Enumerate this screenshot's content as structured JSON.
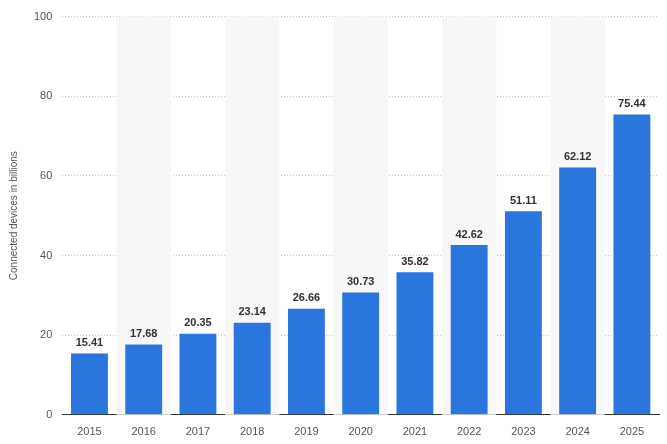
{
  "chart_data": {
    "type": "bar",
    "y_label": "Connected devices in billions",
    "categories": [
      "2015",
      "2016",
      "2017",
      "2018",
      "2019",
      "2020",
      "2021",
      "2022",
      "2023",
      "2024",
      "2025"
    ],
    "values": [
      15.41,
      17.68,
      20.35,
      23.14,
      26.66,
      30.73,
      35.82,
      42.62,
      51.11,
      62.12,
      75.44
    ],
    "color": "#2a76dd",
    "ylim": [
      0,
      100
    ],
    "yticks": [
      0,
      20,
      40,
      60,
      80,
      100
    ],
    "grid": true,
    "data_labels": true
  }
}
